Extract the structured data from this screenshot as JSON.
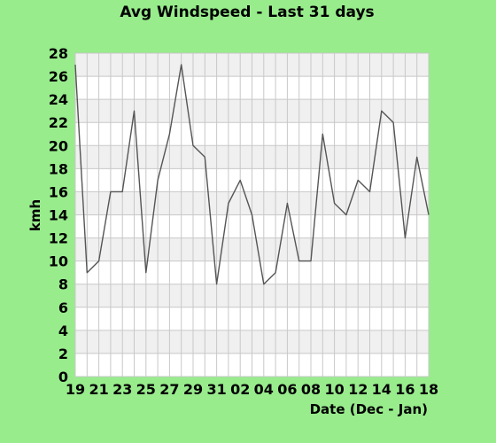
{
  "chart_data": {
    "type": "line",
    "title": "Avg Windspeed - Last 31 days",
    "xlabel": "Date (Dec - Jan)",
    "ylabel": "kmh",
    "ylim": [
      0,
      28
    ],
    "yticks": [
      0,
      2,
      4,
      6,
      8,
      10,
      12,
      14,
      16,
      18,
      20,
      22,
      24,
      26,
      28
    ],
    "xtick_labels": [
      "19",
      "21",
      "23",
      "25",
      "27",
      "29",
      "31",
      "02",
      "04",
      "06",
      "08",
      "10",
      "12",
      "14",
      "16",
      "18"
    ],
    "grid": true,
    "colors": {
      "background": "#98ec8c",
      "plot": "#ffffff",
      "band": "#f0f0f0",
      "grid": "#c8c8c8",
      "line": "#555555"
    },
    "x": [
      "19",
      "20",
      "21",
      "22",
      "23",
      "24",
      "25",
      "26",
      "27",
      "28",
      "29",
      "30",
      "31",
      "01",
      "02",
      "03",
      "04",
      "05",
      "06",
      "07",
      "08",
      "09",
      "10",
      "11",
      "12",
      "13",
      "14",
      "15",
      "16",
      "17",
      "18"
    ],
    "series": [
      {
        "values": [
          27,
          9,
          10,
          16,
          16,
          23,
          9,
          17,
          21,
          27,
          20,
          19,
          8,
          15,
          17,
          14,
          8,
          9,
          15,
          10,
          10,
          21,
          15,
          14,
          17,
          16,
          23,
          22,
          12,
          19,
          14
        ]
      }
    ]
  }
}
